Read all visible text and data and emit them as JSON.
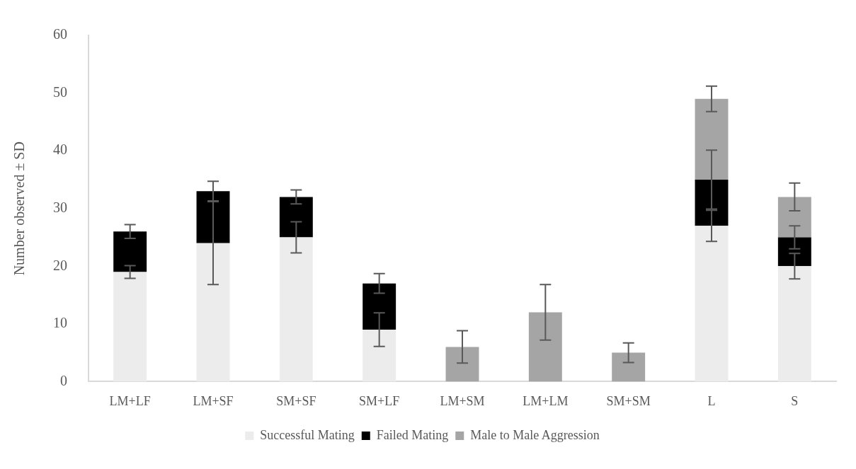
{
  "chart_data": {
    "type": "bar",
    "stacked": true,
    "ylabel": "Number observed ± SD",
    "categories": [
      "LM+LF",
      "LM+SF",
      "SM+SF",
      "SM+LF",
      "LM+SM",
      "LM+LM",
      "SM+SM",
      "L",
      "S"
    ],
    "series": [
      {
        "name": "Successful Mating",
        "color": "#ececec",
        "values": [
          19,
          24,
          25,
          9,
          null,
          null,
          null,
          27,
          20
        ],
        "errors": [
          1.1,
          7.2,
          2.7,
          2.9,
          null,
          null,
          null,
          2.7,
          2.2
        ]
      },
      {
        "name": "Failed Mating",
        "color": "#000000",
        "values": [
          7,
          9,
          7,
          8,
          null,
          null,
          null,
          8,
          5
        ],
        "errors": [
          1.2,
          1.7,
          1.2,
          1.7,
          null,
          null,
          null,
          5.1,
          2.0
        ]
      },
      {
        "name": "Male to Male Aggression",
        "color": "#a5a5a5",
        "values": [
          null,
          null,
          null,
          null,
          6,
          12,
          5,
          14,
          7
        ],
        "errors": [
          null,
          null,
          null,
          null,
          2.8,
          4.8,
          1.7,
          2.2,
          2.4
        ]
      }
    ],
    "ylim": [
      0,
      60
    ],
    "yticks": [
      0,
      10,
      20,
      30,
      40,
      50,
      60
    ],
    "grid": false,
    "legend": "bottom"
  }
}
